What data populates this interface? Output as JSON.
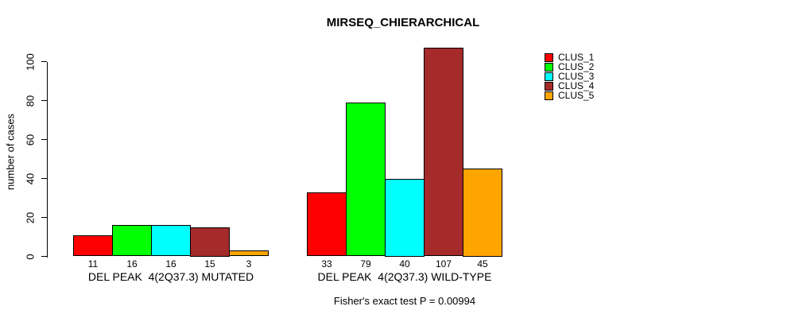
{
  "chart_data": {
    "type": "bar",
    "title": "MIRSEQ_CHIERARCHICAL",
    "xlabel": "",
    "ylabel": "number of cases",
    "ylim": [
      0,
      100
    ],
    "yticks": [
      0,
      20,
      40,
      60,
      80,
      100
    ],
    "grid": false,
    "legend_position": "top-right",
    "annotation": "Fisher's exact test P = 0.00994",
    "categories": [
      "DEL PEAK  4(2Q37.3) MUTATED",
      "DEL PEAK  4(2Q37.3) WILD-TYPE"
    ],
    "series": [
      {
        "name": "CLUS_1",
        "color": "#FF0000",
        "values": [
          11,
          33
        ]
      },
      {
        "name": "CLUS_2",
        "color": "#00FF00",
        "values": [
          16,
          79
        ]
      },
      {
        "name": "CLUS_3",
        "color": "#00FFFF",
        "values": [
          16,
          40
        ]
      },
      {
        "name": "CLUS_4",
        "color": "#A52A2A",
        "values": [
          15,
          107
        ]
      },
      {
        "name": "CLUS_5",
        "color": "#FFA500",
        "values": [
          3,
          45
        ]
      }
    ]
  }
}
